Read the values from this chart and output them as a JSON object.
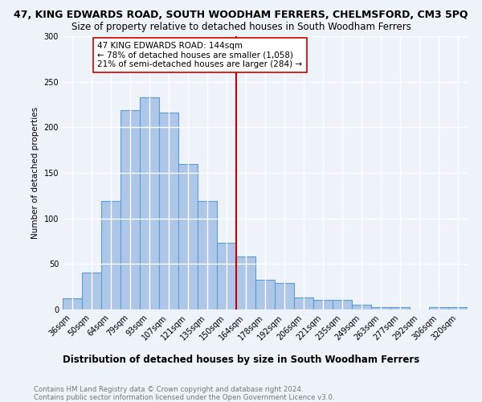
{
  "title": "47, KING EDWARDS ROAD, SOUTH WOODHAM FERRERS, CHELMSFORD, CM3 5PQ",
  "subtitle": "Size of property relative to detached houses in South Woodham Ferrers",
  "xlabel": "Distribution of detached houses by size in South Woodham Ferrers",
  "ylabel": "Number of detached properties",
  "footnote": "Contains HM Land Registry data © Crown copyright and database right 2024.\nContains public sector information licensed under the Open Government Licence v3.0.",
  "categories": [
    "36sqm",
    "50sqm",
    "64sqm",
    "79sqm",
    "93sqm",
    "107sqm",
    "121sqm",
    "135sqm",
    "150sqm",
    "164sqm",
    "178sqm",
    "192sqm",
    "206sqm",
    "221sqm",
    "235sqm",
    "249sqm",
    "263sqm",
    "277sqm",
    "292sqm",
    "306sqm",
    "320sqm"
  ],
  "values": [
    12,
    41,
    119,
    219,
    233,
    216,
    160,
    119,
    73,
    58,
    33,
    29,
    13,
    11,
    11,
    5,
    3,
    3,
    0,
    3,
    3
  ],
  "bar_color": "#aec6e8",
  "bar_edge_color": "#5a9fd4",
  "vline_x": 8.5,
  "vline_color": "#cc0000",
  "annotation_text": "47 KING EDWARDS ROAD: 144sqm\n← 78% of detached houses are smaller (1,058)\n21% of semi-detached houses are larger (284) →",
  "annotation_box_color": "#ffffff",
  "annotation_box_edge": "#cc0000",
  "ylim": [
    0,
    300
  ],
  "yticks": [
    0,
    50,
    100,
    150,
    200,
    250,
    300
  ],
  "background_color": "#eef2f9",
  "grid_color": "#ffffff",
  "title_fontsize": 9,
  "subtitle_fontsize": 8.5,
  "axis_label_fontsize": 7.5,
  "tick_fontsize": 7,
  "annotation_fontsize": 7.5,
  "xlabel_fontsize": 8.5,
  "footnote_fontsize": 6.2
}
